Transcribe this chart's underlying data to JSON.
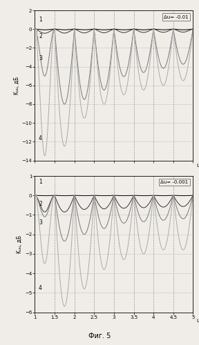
{
  "title1_annotation": "Δu= -0.01",
  "title2_annotation": "Δu= -0.001",
  "ylabel1": "Kᵤᵤ, дБ",
  "ylabel2": "Kᵤᵤ, дБ",
  "xlabel": "u",
  "fig_caption": "Фиг. 5",
  "plot1": {
    "ylim": [
      -14,
      2
    ],
    "yticks": [
      2,
      0,
      -2,
      -4,
      -6,
      -8,
      -10,
      -12,
      -14
    ],
    "xlim": [
      1,
      5
    ],
    "xticks": [
      1,
      1.5,
      2,
      2.5,
      3,
      3.5,
      4,
      4.5,
      5
    ]
  },
  "plot2": {
    "ylim": [
      -6,
      1
    ],
    "yticks": [
      1,
      0,
      -1,
      -2,
      -3,
      -4,
      -5,
      -6
    ],
    "xlim": [
      1,
      5
    ],
    "xticks": [
      1,
      1.5,
      2,
      2.5,
      3,
      3.5,
      4,
      4.5,
      5
    ]
  },
  "background_color": "#f0ede8",
  "line_colors": [
    "#000000",
    "#333333",
    "#777777",
    "#aaaaaa"
  ],
  "lw": 0.7
}
